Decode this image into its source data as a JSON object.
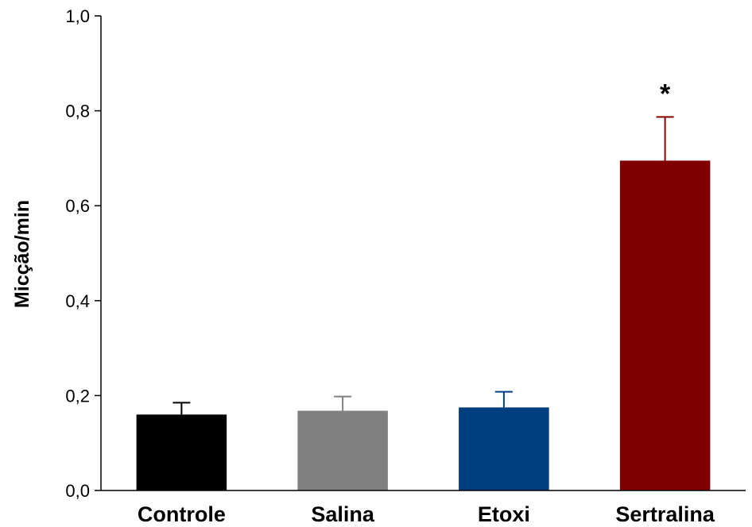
{
  "chart_data": {
    "type": "bar",
    "title": "",
    "xlabel": "",
    "ylabel": "Micção/min",
    "ylim": [
      0,
      1
    ],
    "yticks": [
      "0,0",
      "0,2",
      "0,4",
      "0,6",
      "0,8",
      "1,0"
    ],
    "categories": [
      "Controle",
      "Salina",
      "Etoxi",
      "Sertralina"
    ],
    "values": [
      0.16,
      0.168,
      0.175,
      0.695
    ],
    "errors": [
      0.025,
      0.03,
      0.033,
      0.092
    ],
    "colors": [
      "#000000",
      "#808080",
      "#003F7F",
      "#7F0000"
    ],
    "annotations": [
      {
        "category": "Sertralina",
        "text": "*"
      }
    ],
    "grid": false,
    "legend": "none"
  }
}
